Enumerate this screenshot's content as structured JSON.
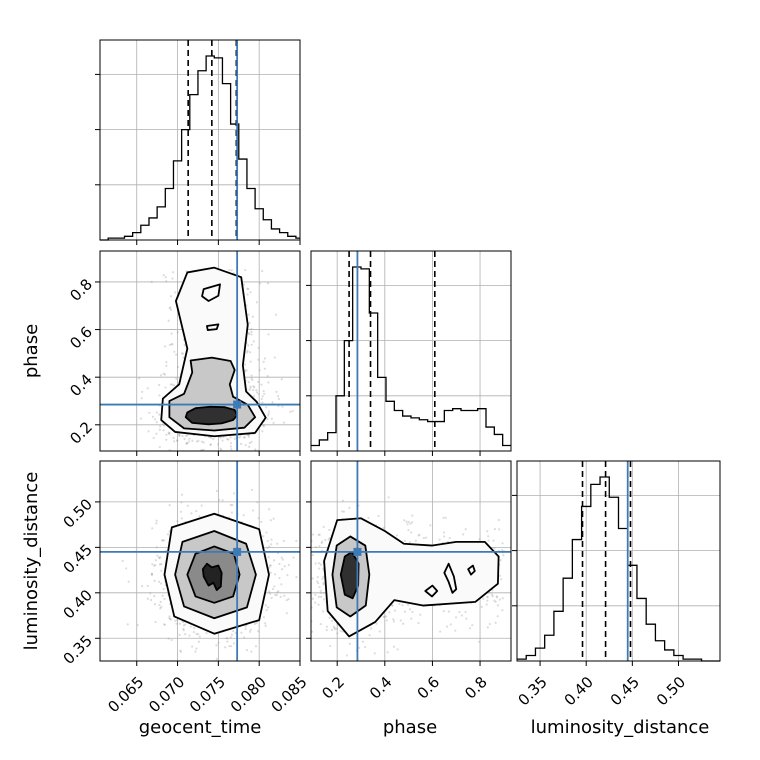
{
  "chart_data": {
    "type": "corner",
    "parameters": [
      "geocent_time",
      "phase",
      "luminosity_distance"
    ],
    "axis_labels": {
      "geocent_time": "geocent_time",
      "phase": "phase",
      "luminosity_distance": "luminosity_distance"
    },
    "ranges": {
      "geocent_time": [
        0.0605,
        0.085
      ],
      "phase": [
        0.09,
        0.93
      ],
      "luminosity_distance": [
        0.325,
        0.545
      ]
    },
    "ticks": {
      "geocent_time": [
        "0.065",
        "0.070",
        "0.075",
        "0.080",
        "0.085"
      ],
      "phase_x": [
        "0.2",
        "0.4",
        "0.6",
        "0.8"
      ],
      "phase_y": [
        "0.2",
        "0.4",
        "0.6",
        "0.8"
      ],
      "luminosity_distance_x": [
        "0.35",
        "0.40",
        "0.45",
        "0.50"
      ],
      "luminosity_distance_y": [
        "0.35",
        "0.40",
        "0.45",
        "0.50"
      ]
    },
    "truths": {
      "geocent_time": 0.0773,
      "phase": 0.285,
      "luminosity_distance": 0.445
    },
    "quantiles": {
      "geocent_time": [
        0.0713,
        0.0742,
        0.0772
      ],
      "phase": [
        0.25,
        0.34,
        0.61
      ],
      "luminosity_distance": [
        0.396,
        0.421,
        0.448
      ]
    },
    "histograms": {
      "geocent_time": {
        "bin_edges": [
          0.0605,
          0.0615,
          0.0625,
          0.0635,
          0.0645,
          0.0655,
          0.0665,
          0.0675,
          0.0685,
          0.0695,
          0.0705,
          0.0715,
          0.0725,
          0.0735,
          0.0745,
          0.0755,
          0.0765,
          0.0775,
          0.0785,
          0.0795,
          0.0805,
          0.0815,
          0.0825,
          0.0835,
          0.0845,
          0.085
        ],
        "counts": [
          0,
          1,
          1,
          2,
          4,
          8,
          12,
          18,
          28,
          43,
          60,
          79,
          92,
          100,
          99,
          85,
          63,
          44,
          28,
          17,
          11,
          6,
          4,
          2,
          1
        ]
      },
      "phase": {
        "bin_edges": [
          0.09,
          0.125,
          0.16,
          0.195,
          0.23,
          0.265,
          0.3,
          0.335,
          0.37,
          0.405,
          0.44,
          0.475,
          0.51,
          0.545,
          0.58,
          0.615,
          0.65,
          0.685,
          0.72,
          0.755,
          0.79,
          0.825,
          0.86,
          0.895,
          0.93
        ],
        "counts": [
          3,
          6,
          10,
          30,
          60,
          100,
          99,
          75,
          40,
          27,
          22,
          19,
          18,
          17,
          16,
          16,
          22,
          23,
          22,
          22,
          23,
          13,
          9,
          3
        ]
      },
      "luminosity_distance": {
        "bin_edges": [
          0.325,
          0.335,
          0.345,
          0.355,
          0.365,
          0.375,
          0.385,
          0.395,
          0.405,
          0.415,
          0.425,
          0.435,
          0.445,
          0.455,
          0.465,
          0.475,
          0.485,
          0.495,
          0.505,
          0.515,
          0.525,
          0.535,
          0.545
        ],
        "counts": [
          1,
          3,
          7,
          14,
          27,
          45,
          66,
          84,
          96,
          100,
          89,
          72,
          52,
          34,
          20,
          11,
          6,
          3,
          1,
          1,
          0,
          0
        ]
      }
    },
    "contours_2d": [
      {
        "x": "geocent_time",
        "y": "phase",
        "levels": [
          [
            [
              0.0718,
              0.208
            ],
            [
              0.0738,
              0.202
            ],
            [
              0.0754,
              0.206
            ],
            [
              0.0768,
              0.22
            ],
            [
              0.0773,
              0.24
            ],
            [
              0.077,
              0.262
            ],
            [
              0.0758,
              0.274
            ],
            [
              0.074,
              0.276
            ],
            [
              0.0722,
              0.27
            ],
            [
              0.0712,
              0.252
            ],
            [
              0.071,
              0.232
            ]
          ],
          [
            [
              0.069,
              0.232
            ],
            [
              0.0708,
              0.185
            ],
            [
              0.0745,
              0.176
            ],
            [
              0.0782,
              0.188
            ],
            [
              0.0795,
              0.232
            ],
            [
              0.0786,
              0.284
            ],
            [
              0.0768,
              0.318
            ],
            [
              0.0764,
              0.37
            ],
            [
              0.077,
              0.43
            ],
            [
              0.0765,
              0.468
            ],
            [
              0.0742,
              0.482
            ],
            [
              0.0716,
              0.47
            ],
            [
              0.0718,
              0.42
            ],
            [
              0.0708,
              0.33
            ],
            [
              0.069,
              0.3
            ]
          ],
          [
            [
              0.068,
              0.22
            ],
            [
              0.0697,
              0.17
            ],
            [
              0.0745,
              0.152
            ],
            [
              0.0795,
              0.166
            ],
            [
              0.0808,
              0.23
            ],
            [
              0.0797,
              0.296
            ],
            [
              0.0784,
              0.34
            ],
            [
              0.078,
              0.45
            ],
            [
              0.0786,
              0.62
            ],
            [
              0.0778,
              0.82
            ],
            [
              0.0745,
              0.86
            ],
            [
              0.0712,
              0.84
            ],
            [
              0.0698,
              0.72
            ],
            [
              0.0712,
              0.52
            ],
            [
              0.0702,
              0.37
            ],
            [
              0.0682,
              0.31
            ]
          ]
        ],
        "inner_islands": [
          [
            [
              0.0732,
              0.77
            ],
            [
              0.0752,
              0.79
            ],
            [
              0.075,
              0.742
            ],
            [
              0.0738,
              0.72
            ],
            [
              0.073,
              0.74
            ]
          ],
          [
            [
              0.0736,
              0.615
            ],
            [
              0.075,
              0.622
            ],
            [
              0.0748,
              0.602
            ],
            [
              0.0737,
              0.598
            ]
          ]
        ]
      },
      {
        "x": "geocent_time",
        "y": "luminosity_distance",
        "levels": [
          [
            [
              0.0732,
              0.418
            ],
            [
              0.0738,
              0.408
            ],
            [
              0.0744,
              0.411
            ],
            [
              0.0748,
              0.403
            ],
            [
              0.0753,
              0.407
            ],
            [
              0.0754,
              0.422
            ],
            [
              0.075,
              0.43
            ],
            [
              0.0742,
              0.428
            ],
            [
              0.0736,
              0.432
            ],
            [
              0.0731,
              0.426
            ]
          ],
          [
            [
              0.0712,
              0.42
            ],
            [
              0.0722,
              0.396
            ],
            [
              0.0745,
              0.389
            ],
            [
              0.0768,
              0.396
            ],
            [
              0.0776,
              0.42
            ],
            [
              0.0769,
              0.443
            ],
            [
              0.0745,
              0.451
            ],
            [
              0.0722,
              0.443
            ]
          ],
          [
            [
              0.0697,
              0.42
            ],
            [
              0.0708,
              0.385
            ],
            [
              0.0745,
              0.372
            ],
            [
              0.0785,
              0.384
            ],
            [
              0.0796,
              0.42
            ],
            [
              0.0784,
              0.454
            ],
            [
              0.0745,
              0.468
            ],
            [
              0.0706,
              0.456
            ]
          ],
          [
            [
              0.0684,
              0.42
            ],
            [
              0.0696,
              0.374
            ],
            [
              0.0745,
              0.355
            ],
            [
              0.08,
              0.37
            ],
            [
              0.0812,
              0.42
            ],
            [
              0.08,
              0.47
            ],
            [
              0.0745,
              0.487
            ],
            [
              0.0693,
              0.472
            ]
          ]
        ]
      },
      {
        "x": "phase",
        "y": "luminosity_distance",
        "levels": [
          [
            [
              0.215,
              0.42
            ],
            [
              0.232,
              0.398
            ],
            [
              0.265,
              0.394
            ],
            [
              0.288,
              0.408
            ],
            [
              0.29,
              0.432
            ],
            [
              0.262,
              0.445
            ],
            [
              0.232,
              0.44
            ]
          ],
          [
            [
              0.18,
              0.42
            ],
            [
              0.198,
              0.384
            ],
            [
              0.255,
              0.374
            ],
            [
              0.32,
              0.386
            ],
            [
              0.335,
              0.42
            ],
            [
              0.318,
              0.452
            ],
            [
              0.255,
              0.462
            ],
            [
              0.198,
              0.452
            ]
          ],
          [
            [
              0.145,
              0.435
            ],
            [
              0.16,
              0.38
            ],
            [
              0.25,
              0.352
            ],
            [
              0.36,
              0.368
            ],
            [
              0.44,
              0.392
            ],
            [
              0.56,
              0.386
            ],
            [
              0.78,
              0.39
            ],
            [
              0.875,
              0.41
            ],
            [
              0.878,
              0.44
            ],
            [
              0.82,
              0.456
            ],
            [
              0.7,
              0.456
            ],
            [
              0.6,
              0.452
            ],
            [
              0.48,
              0.454
            ],
            [
              0.4,
              0.468
            ],
            [
              0.3,
              0.482
            ],
            [
              0.2,
              0.48
            ]
          ]
        ],
        "inner_islands": [
          [
            [
              0.65,
              0.422
            ],
            [
              0.668,
              0.432
            ],
            [
              0.69,
              0.418
            ],
            [
              0.7,
              0.404
            ],
            [
              0.684,
              0.4
            ],
            [
              0.668,
              0.412
            ]
          ],
          [
            [
              0.57,
              0.402
            ],
            [
              0.6,
              0.408
            ],
            [
              0.62,
              0.402
            ],
            [
              0.598,
              0.396
            ]
          ],
          [
            [
              0.75,
              0.426
            ],
            [
              0.77,
              0.43
            ],
            [
              0.778,
              0.424
            ],
            [
              0.762,
              0.42
            ]
          ]
        ]
      }
    ],
    "style": {
      "truth_color": "#3d7ab6",
      "line_color": "#000000",
      "scatter_color": "#9a9a9a",
      "grid": true
    }
  }
}
